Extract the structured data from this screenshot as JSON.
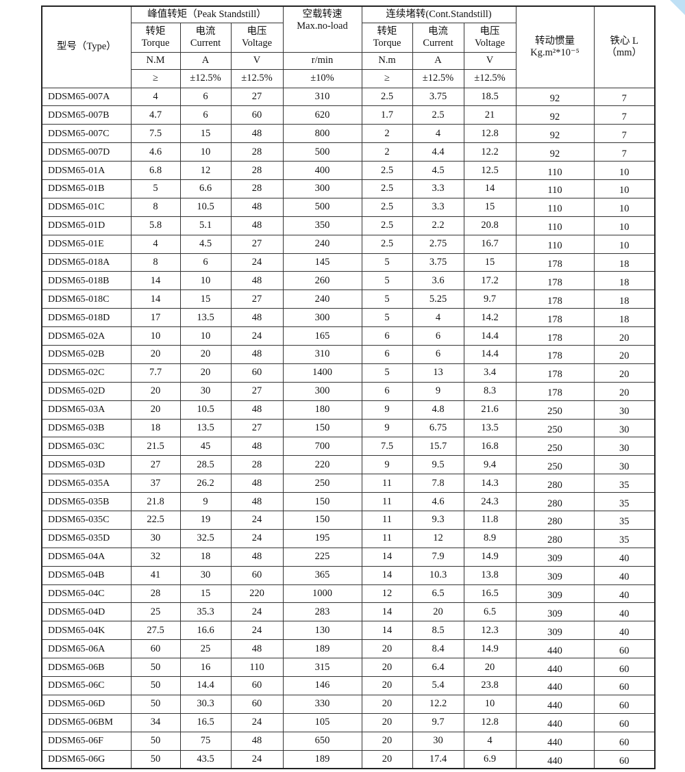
{
  "header": {
    "type": "型号（Type）",
    "peak_group": "峰值转矩（Peak Standstill）",
    "speed_cn": "空载转速",
    "speed_en": "Max.no-load",
    "cont_group": "连续堵转(Cont.Standstill)",
    "torque_cn": "转矩",
    "torque_en": "Torque",
    "current_cn": "电流",
    "current_en": "Current",
    "voltage_cn": "电压",
    "voltage_en": "Voltage",
    "inertia_cn": "转动惯量",
    "inertia_en": "Kg.m²*10⁻⁵",
    "core_cn": "铁心 L",
    "core_unit": "（mm）",
    "units": [
      "N.M",
      "A",
      "V",
      "r/min",
      "N.m",
      "A",
      "V"
    ],
    "tolerances": [
      "≥",
      "±12.5%",
      "±12.5%",
      "±10%",
      "≥",
      "±12.5%",
      "±12.5%"
    ]
  },
  "rows": [
    [
      "DDSM65-007A",
      "4",
      "6",
      "27",
      "310",
      "2.5",
      "3.75",
      "18.5",
      "92",
      "7"
    ],
    [
      "DDSM65-007B",
      "4.7",
      "6",
      "60",
      "620",
      "1.7",
      "2.5",
      "21",
      "92",
      "7"
    ],
    [
      "DDSM65-007C",
      "7.5",
      "15",
      "48",
      "800",
      "2",
      "4",
      "12.8",
      "92",
      "7"
    ],
    [
      "DDSM65-007D",
      "4.6",
      "10",
      "28",
      "500",
      "2",
      "4.4",
      "12.2",
      "92",
      "7"
    ],
    [
      "DDSM65-01A",
      "6.8",
      "12",
      "28",
      "400",
      "2.5",
      "4.5",
      "12.5",
      "110",
      "10"
    ],
    [
      "DDSM65-01B",
      "5",
      "6.6",
      "28",
      "300",
      "2.5",
      "3.3",
      "14",
      "110",
      "10"
    ],
    [
      "DDSM65-01C",
      "8",
      "10.5",
      "48",
      "500",
      "2.5",
      "3.3",
      "15",
      "110",
      "10"
    ],
    [
      "DDSM65-01D",
      "5.8",
      "5.1",
      "48",
      "350",
      "2.5",
      "2.2",
      "20.8",
      "110",
      "10"
    ],
    [
      "DDSM65-01E",
      "4",
      "4.5",
      "27",
      "240",
      "2.5",
      "2.75",
      "16.7",
      "110",
      "10"
    ],
    [
      "DDSM65-018A",
      "8",
      "6",
      "24",
      "145",
      "5",
      "3.75",
      "15",
      "178",
      "18"
    ],
    [
      "DDSM65-018B",
      "14",
      "10",
      "48",
      "260",
      "5",
      "3.6",
      "17.2",
      "178",
      "18"
    ],
    [
      "DDSM65-018C",
      "14",
      "15",
      "27",
      "240",
      "5",
      "5.25",
      "9.7",
      "178",
      "18"
    ],
    [
      "DDSM65-018D",
      "17",
      "13.5",
      "48",
      "300",
      "5",
      "4",
      "14.2",
      "178",
      "18"
    ],
    [
      "DDSM65-02A",
      "10",
      "10",
      "24",
      "165",
      "6",
      "6",
      "14.4",
      "178",
      "20"
    ],
    [
      "DDSM65-02B",
      "20",
      "20",
      "48",
      "310",
      "6",
      "6",
      "14.4",
      "178",
      "20"
    ],
    [
      "DDSM65-02C",
      "7.7",
      "20",
      "60",
      "1400",
      "5",
      "13",
      "3.4",
      "178",
      "20"
    ],
    [
      "DDSM65-02D",
      "20",
      "30",
      "27",
      "300",
      "6",
      "9",
      "8.3",
      "178",
      "20"
    ],
    [
      "DDSM65-03A",
      "20",
      "10.5",
      "48",
      "180",
      "9",
      "4.8",
      "21.6",
      "250",
      "30"
    ],
    [
      "DDSM65-03B",
      "18",
      "13.5",
      "27",
      "150",
      "9",
      "6.75",
      "13.5",
      "250",
      "30"
    ],
    [
      "DDSM65-03C",
      "21.5",
      "45",
      "48",
      "700",
      "7.5",
      "15.7",
      "16.8",
      "250",
      "30"
    ],
    [
      "DDSM65-03D",
      "27",
      "28.5",
      "28",
      "220",
      "9",
      "9.5",
      "9.4",
      "250",
      "30"
    ],
    [
      "DDSM65-035A",
      "37",
      "26.2",
      "48",
      "250",
      "11",
      "7.8",
      "14.3",
      "280",
      "35"
    ],
    [
      "DDSM65-035B",
      "21.8",
      "9",
      "48",
      "150",
      "11",
      "4.6",
      "24.3",
      "280",
      "35"
    ],
    [
      "DDSM65-035C",
      "22.5",
      "19",
      "24",
      "150",
      "11",
      "9.3",
      "11.8",
      "280",
      "35"
    ],
    [
      "DDSM65-035D",
      "30",
      "32.5",
      "24",
      "195",
      "11",
      "12",
      "8.9",
      "280",
      "35"
    ],
    [
      "DDSM65-04A",
      "32",
      "18",
      "48",
      "225",
      "14",
      "7.9",
      "14.9",
      "309",
      "40"
    ],
    [
      "DDSM65-04B",
      "41",
      "30",
      "60",
      "365",
      "14",
      "10.3",
      "13.8",
      "309",
      "40"
    ],
    [
      "DDSM65-04C",
      "28",
      "15",
      "220",
      "1000",
      "12",
      "6.5",
      "16.5",
      "309",
      "40"
    ],
    [
      "DDSM65-04D",
      "25",
      "35.3",
      "24",
      "283",
      "14",
      "20",
      "6.5",
      "309",
      "40"
    ],
    [
      "DDSM65-04K",
      "27.5",
      "16.6",
      "24",
      "130",
      "14",
      "8.5",
      "12.3",
      "309",
      "40"
    ],
    [
      "DDSM65-06A",
      "60",
      "25",
      "48",
      "189",
      "20",
      "8.4",
      "14.9",
      "440",
      "60"
    ],
    [
      "DDSM65-06B",
      "50",
      "16",
      "110",
      "315",
      "20",
      "6.4",
      "20",
      "440",
      "60"
    ],
    [
      "DDSM65-06C",
      "50",
      "14.4",
      "60",
      "146",
      "20",
      "5.4",
      "23.8",
      "440",
      "60"
    ],
    [
      "DDSM65-06D",
      "50",
      "30.3",
      "60",
      "330",
      "20",
      "12.2",
      "10",
      "440",
      "60"
    ],
    [
      "DDSM65-06BM",
      "34",
      "16.5",
      "24",
      "105",
      "20",
      "9.7",
      "12.8",
      "440",
      "60"
    ],
    [
      "DDSM65-06F",
      "50",
      "75",
      "48",
      "650",
      "20",
      "30",
      "4",
      "440",
      "60"
    ],
    [
      "DDSM65-06G",
      "50",
      "43.5",
      "24",
      "189",
      "20",
      "17.4",
      "6.9",
      "440",
      "60"
    ]
  ]
}
